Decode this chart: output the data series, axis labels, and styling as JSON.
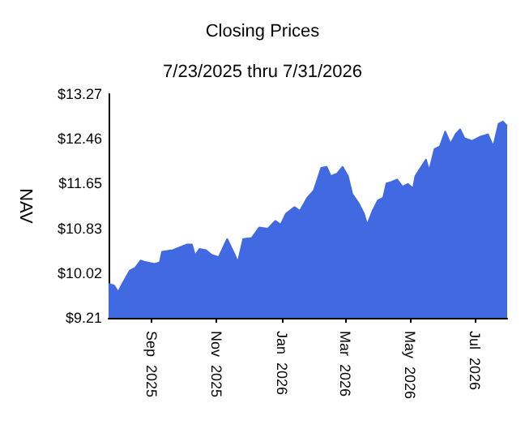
{
  "chart_data": {
    "type": "area",
    "title": "Closing Prices",
    "subtitle": "7/23/2025 thru 7/31/2026",
    "ylabel": "NAV",
    "color": "#4169e1",
    "xlim": [
      "2025-07-23",
      "2026-07-31"
    ],
    "xticks": [
      {
        "value": "2025-09-01",
        "label": "Sep  2025"
      },
      {
        "value": "2025-11-01",
        "label": "Nov  2025"
      },
      {
        "value": "2026-01-01",
        "label": "Jan  2026"
      },
      {
        "value": "2026-03-01",
        "label": "Mar  2026"
      },
      {
        "value": "2026-05-01",
        "label": "May  2026"
      },
      {
        "value": "2026-07-01",
        "label": "Jul  2026"
      }
    ],
    "ylim": [
      9.21,
      13.27
    ],
    "yticks": [
      {
        "value": 9.21,
        "label": "$9.21"
      },
      {
        "value": 10.02,
        "label": "$10.02"
      },
      {
        "value": 10.83,
        "label": "$10.83"
      },
      {
        "value": 11.65,
        "label": "$11.65"
      },
      {
        "value": 12.46,
        "label": "$12.46"
      },
      {
        "value": 13.27,
        "label": "$13.27"
      }
    ],
    "x": [
      "2025-07-23",
      "2025-07-28",
      "2025-08-01",
      "2025-08-06",
      "2025-08-12",
      "2025-08-17",
      "2025-08-22",
      "2025-08-27",
      "2025-09-04",
      "2025-09-09",
      "2025-09-11",
      "2025-09-21",
      "2025-10-04",
      "2025-10-09",
      "2025-10-12",
      "2025-10-16",
      "2025-10-22",
      "2025-10-27",
      "2025-11-03",
      "2025-11-11",
      "2025-11-18",
      "2025-11-21",
      "2025-11-26",
      "2025-12-04",
      "2025-12-11",
      "2025-12-19",
      "2025-12-26",
      "2025-12-31",
      "2026-01-05",
      "2026-01-13",
      "2026-01-18",
      "2026-01-25",
      "2026-01-31",
      "2026-02-07",
      "2026-02-12",
      "2026-02-16",
      "2026-02-22",
      "2026-02-27",
      "2026-03-04",
      "2026-03-08",
      "2026-03-14",
      "2026-03-19",
      "2026-03-22",
      "2026-03-27",
      "2026-04-01",
      "2026-04-06",
      "2026-04-09",
      "2026-04-14",
      "2026-04-19",
      "2026-04-24",
      "2026-04-29",
      "2026-05-04",
      "2026-05-06",
      "2026-05-11",
      "2026-05-16",
      "2026-05-19",
      "2026-05-24",
      "2026-05-29",
      "2026-06-03",
      "2026-06-08",
      "2026-06-13",
      "2026-06-17",
      "2026-06-21",
      "2026-06-28",
      "2026-07-06",
      "2026-07-13",
      "2026-07-18",
      "2026-07-23",
      "2026-07-27",
      "2026-07-31"
    ],
    "values": [
      9.83,
      9.8,
      9.68,
      9.87,
      10.07,
      10.12,
      10.25,
      10.22,
      10.19,
      10.22,
      10.41,
      10.44,
      10.54,
      10.54,
      10.34,
      10.46,
      10.44,
      10.36,
      10.31,
      10.64,
      10.36,
      10.22,
      10.64,
      10.66,
      10.85,
      10.83,
      10.97,
      10.9,
      11.1,
      11.22,
      11.15,
      11.39,
      11.52,
      11.93,
      11.95,
      11.78,
      11.83,
      11.95,
      11.78,
      11.46,
      11.29,
      11.1,
      10.9,
      11.15,
      11.34,
      11.39,
      11.65,
      11.68,
      11.72,
      11.59,
      11.64,
      11.56,
      11.78,
      11.93,
      12.08,
      11.88,
      12.27,
      12.32,
      12.59,
      12.37,
      12.55,
      12.63,
      12.47,
      12.42,
      12.5,
      12.54,
      12.32,
      12.73,
      12.77,
      12.69
    ]
  }
}
